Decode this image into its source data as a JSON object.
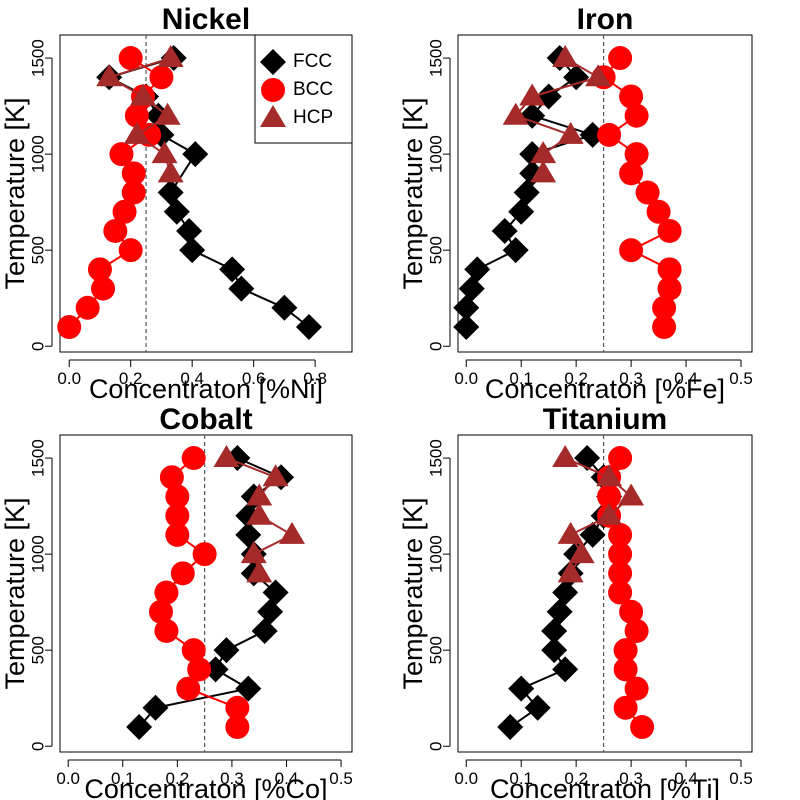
{
  "colors": {
    "FCC": "#000000",
    "BCC": "#ff0000",
    "HCP": "#a52a2a",
    "refline": "#555555"
  },
  "legend": [
    {
      "label": "FCC",
      "marker": "diamond"
    },
    {
      "label": "BCC",
      "marker": "circle"
    },
    {
      "label": "HCP",
      "marker": "triangle"
    }
  ],
  "chart_data": [
    {
      "type": "scatter",
      "title": "Nickel",
      "xlabel": "Concentraton [%Ni]",
      "ylabel": "Temperature [K]",
      "xticks": [
        0.0,
        0.2,
        0.4,
        0.6,
        0.8
      ],
      "xtick_labels": [
        "0.0",
        "0.2",
        "0.4",
        "0.6",
        "0.8"
      ],
      "xlim": [
        -0.03,
        0.92
      ],
      "yticks": [
        0,
        500,
        1000,
        1500
      ],
      "ylim": [
        -30,
        1620
      ],
      "refline_x": 0.25,
      "show_legend": true,
      "series": [
        {
          "name": "FCC",
          "points": [
            [
              0.78,
              100
            ],
            [
              0.7,
              200
            ],
            [
              0.56,
              300
            ],
            [
              0.53,
              400
            ],
            [
              0.4,
              500
            ],
            [
              0.39,
              600
            ],
            [
              0.35,
              700
            ],
            [
              0.33,
              800
            ],
            [
              0.41,
              1000
            ],
            [
              0.3,
              1100
            ],
            [
              0.29,
              1200
            ],
            [
              0.25,
              1300
            ],
            [
              0.13,
              1400
            ],
            [
              0.34,
              1500
            ]
          ]
        },
        {
          "name": "BCC",
          "points": [
            [
              0.0,
              100
            ],
            [
              0.06,
              200
            ],
            [
              0.11,
              300
            ],
            [
              0.1,
              400
            ],
            [
              0.2,
              500
            ],
            [
              0.15,
              600
            ],
            [
              0.18,
              700
            ],
            [
              0.21,
              800
            ],
            [
              0.21,
              900
            ],
            [
              0.17,
              1000
            ],
            [
              0.26,
              1100
            ],
            [
              0.22,
              1200
            ],
            [
              0.24,
              1300
            ],
            [
              0.3,
              1400
            ],
            [
              0.2,
              1500
            ]
          ]
        },
        {
          "name": "HCP",
          "points": [
            [
              0.33,
              900
            ],
            [
              0.31,
              1000
            ],
            [
              0.22,
              1100
            ],
            [
              0.32,
              1200
            ],
            [
              0.24,
              1300
            ],
            [
              0.13,
              1400
            ],
            [
              0.33,
              1500
            ]
          ]
        }
      ]
    },
    {
      "type": "scatter",
      "title": "Iron",
      "xlabel": "Concentraton [%Fe]",
      "ylabel": "Temperature [K]",
      "xticks": [
        0.0,
        0.1,
        0.2,
        0.3,
        0.4,
        0.5
      ],
      "xtick_labels": [
        "0.0",
        "0.1",
        "0.2",
        "0.3",
        "0.4",
        "0.5"
      ],
      "xlim": [
        -0.015,
        0.52
      ],
      "yticks": [
        0,
        500,
        1000,
        1500
      ],
      "ylim": [
        -30,
        1620
      ],
      "refline_x": 0.25,
      "show_legend": false,
      "series": [
        {
          "name": "FCC",
          "points": [
            [
              0.0,
              100
            ],
            [
              0.0,
              200
            ],
            [
              0.01,
              300
            ],
            [
              0.02,
              400
            ],
            [
              0.09,
              500
            ],
            [
              0.07,
              600
            ],
            [
              0.1,
              700
            ],
            [
              0.11,
              800
            ],
            [
              0.12,
              900
            ],
            [
              0.12,
              1000
            ],
            [
              0.23,
              1100
            ],
            [
              0.12,
              1200
            ],
            [
              0.15,
              1300
            ],
            [
              0.2,
              1400
            ],
            [
              0.17,
              1500
            ]
          ]
        },
        {
          "name": "BCC",
          "points": [
            [
              0.36,
              100
            ],
            [
              0.36,
              200
            ],
            [
              0.37,
              300
            ],
            [
              0.37,
              400
            ],
            [
              0.3,
              500
            ],
            [
              0.37,
              600
            ],
            [
              0.35,
              700
            ],
            [
              0.33,
              800
            ],
            [
              0.3,
              900
            ],
            [
              0.31,
              1000
            ],
            [
              0.26,
              1100
            ],
            [
              0.31,
              1200
            ],
            [
              0.3,
              1300
            ],
            [
              0.25,
              1400
            ],
            [
              0.28,
              1500
            ]
          ]
        },
        {
          "name": "HCP",
          "points": [
            [
              0.14,
              900
            ],
            [
              0.14,
              1000
            ],
            [
              0.19,
              1100
            ],
            [
              0.09,
              1200
            ],
            [
              0.12,
              1300
            ],
            [
              0.24,
              1400
            ],
            [
              0.18,
              1500
            ]
          ]
        }
      ]
    },
    {
      "type": "scatter",
      "title": "Cobalt",
      "xlabel": "Concentraton [%Co]",
      "ylabel": "Temperature [K]",
      "xticks": [
        0.0,
        0.1,
        0.2,
        0.3,
        0.4,
        0.5
      ],
      "xtick_labels": [
        "0.0",
        "0.1",
        "0.2",
        "0.3",
        "0.4",
        "0.5"
      ],
      "xlim": [
        -0.015,
        0.52
      ],
      "yticks": [
        0,
        500,
        1000,
        1500
      ],
      "ylim": [
        -30,
        1620
      ],
      "refline_x": 0.25,
      "show_legend": false,
      "series": [
        {
          "name": "FCC",
          "points": [
            [
              0.13,
              100
            ],
            [
              0.16,
              200
            ],
            [
              0.33,
              300
            ],
            [
              0.27,
              400
            ],
            [
              0.29,
              500
            ],
            [
              0.36,
              600
            ],
            [
              0.37,
              700
            ],
            [
              0.38,
              800
            ],
            [
              0.34,
              900
            ],
            [
              0.34,
              1000
            ],
            [
              0.33,
              1100
            ],
            [
              0.33,
              1200
            ],
            [
              0.34,
              1300
            ],
            [
              0.39,
              1400
            ],
            [
              0.31,
              1500
            ]
          ]
        },
        {
          "name": "BCC",
          "points": [
            [
              0.31,
              100
            ],
            [
              0.31,
              200
            ],
            [
              0.22,
              300
            ],
            [
              0.24,
              400
            ],
            [
              0.23,
              500
            ],
            [
              0.18,
              600
            ],
            [
              0.17,
              700
            ],
            [
              0.18,
              800
            ],
            [
              0.21,
              900
            ],
            [
              0.25,
              1000
            ],
            [
              0.2,
              1100
            ],
            [
              0.2,
              1200
            ],
            [
              0.2,
              1300
            ],
            [
              0.19,
              1400
            ],
            [
              0.23,
              1500
            ]
          ]
        },
        {
          "name": "HCP",
          "points": [
            [
              0.35,
              900
            ],
            [
              0.34,
              1000
            ],
            [
              0.41,
              1100
            ],
            [
              0.35,
              1200
            ],
            [
              0.35,
              1300
            ],
            [
              0.38,
              1400
            ],
            [
              0.29,
              1500
            ]
          ]
        }
      ]
    },
    {
      "type": "scatter",
      "title": "Titanium",
      "xlabel": "Concentraton [%Ti]",
      "ylabel": "Temperature [K]",
      "xticks": [
        0.0,
        0.1,
        0.2,
        0.3,
        0.4,
        0.5
      ],
      "xtick_labels": [
        "0.0",
        "0.1",
        "0.2",
        "0.3",
        "0.4",
        "0.5"
      ],
      "xlim": [
        -0.015,
        0.52
      ],
      "yticks": [
        0,
        500,
        1000,
        1500
      ],
      "ylim": [
        -30,
        1620
      ],
      "refline_x": 0.25,
      "show_legend": false,
      "series": [
        {
          "name": "FCC",
          "points": [
            [
              0.08,
              100
            ],
            [
              0.13,
              200
            ],
            [
              0.1,
              300
            ],
            [
              0.18,
              400
            ],
            [
              0.16,
              500
            ],
            [
              0.16,
              600
            ],
            [
              0.17,
              700
            ],
            [
              0.18,
              800
            ],
            [
              0.19,
              900
            ],
            [
              0.2,
              1000
            ],
            [
              0.23,
              1100
            ],
            [
              0.25,
              1200
            ],
            [
              0.26,
              1300
            ],
            [
              0.25,
              1400
            ],
            [
              0.22,
              1500
            ]
          ]
        },
        {
          "name": "BCC",
          "points": [
            [
              0.32,
              100
            ],
            [
              0.29,
              200
            ],
            [
              0.31,
              300
            ],
            [
              0.29,
              400
            ],
            [
              0.29,
              500
            ],
            [
              0.31,
              600
            ],
            [
              0.3,
              700
            ],
            [
              0.28,
              800
            ],
            [
              0.28,
              900
            ],
            [
              0.28,
              1000
            ],
            [
              0.28,
              1100
            ],
            [
              0.26,
              1200
            ],
            [
              0.26,
              1300
            ],
            [
              0.26,
              1400
            ],
            [
              0.28,
              1500
            ]
          ]
        },
        {
          "name": "HCP",
          "points": [
            [
              0.19,
              900
            ],
            [
              0.21,
              1000
            ],
            [
              0.19,
              1100
            ],
            [
              0.26,
              1200
            ],
            [
              0.3,
              1300
            ],
            [
              0.26,
              1400
            ],
            [
              0.18,
              1500
            ]
          ]
        }
      ]
    }
  ]
}
